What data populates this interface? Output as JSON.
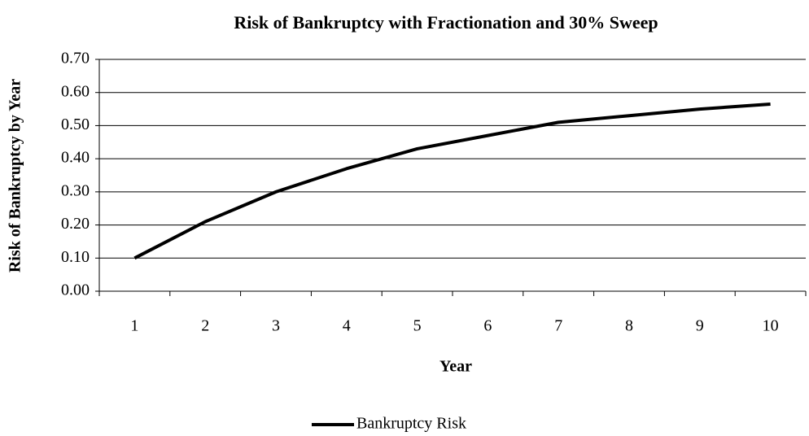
{
  "chart_data": {
    "type": "line",
    "title": "Risk of Bankruptcy with Fractionation and 30% Sweep",
    "x_label": "Year",
    "y_label": "Risk of Bankruptcy by Year",
    "categories": [
      "1",
      "2",
      "3",
      "4",
      "5",
      "6",
      "7",
      "8",
      "9",
      "10"
    ],
    "series": [
      {
        "name": "Bankruptcy Risk",
        "color": "#000000",
        "values": [
          0.1,
          0.21,
          0.3,
          0.37,
          0.43,
          0.47,
          0.51,
          0.53,
          0.55,
          0.565
        ]
      }
    ],
    "ylim": [
      0,
      0.7
    ],
    "yticks": [
      {
        "value": 0,
        "label": "0.00"
      },
      {
        "value": 0.1,
        "label": "0.10"
      },
      {
        "value": 0.2,
        "label": "0.20"
      },
      {
        "value": 0.3,
        "label": "0.30"
      },
      {
        "value": 0.4,
        "label": "0.40"
      },
      {
        "value": 0.5,
        "label": "0.50"
      },
      {
        "value": 0.6,
        "label": "0.60"
      },
      {
        "value": 0.7,
        "label": "0.70"
      }
    ],
    "grid": true,
    "legend": "bottom"
  }
}
